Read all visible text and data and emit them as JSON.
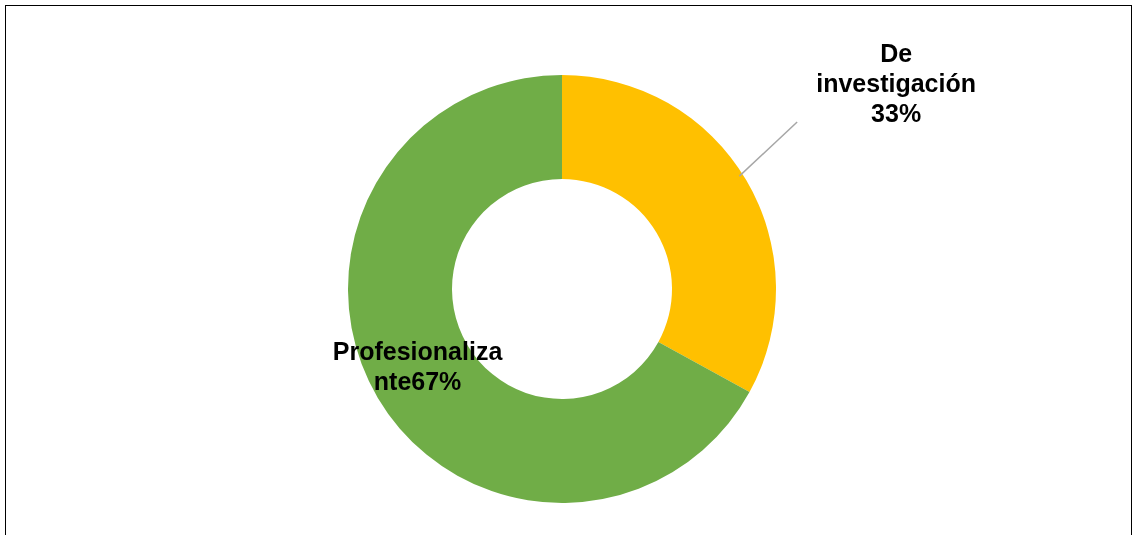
{
  "chart_data": {
    "type": "donut",
    "categories": [
      "De investigación",
      "Profesionalizante"
    ],
    "values": [
      33,
      67
    ],
    "colors": [
      "#ffc000",
      "#70ad47"
    ],
    "value_labels": [
      "33%",
      "67%"
    ]
  }
}
